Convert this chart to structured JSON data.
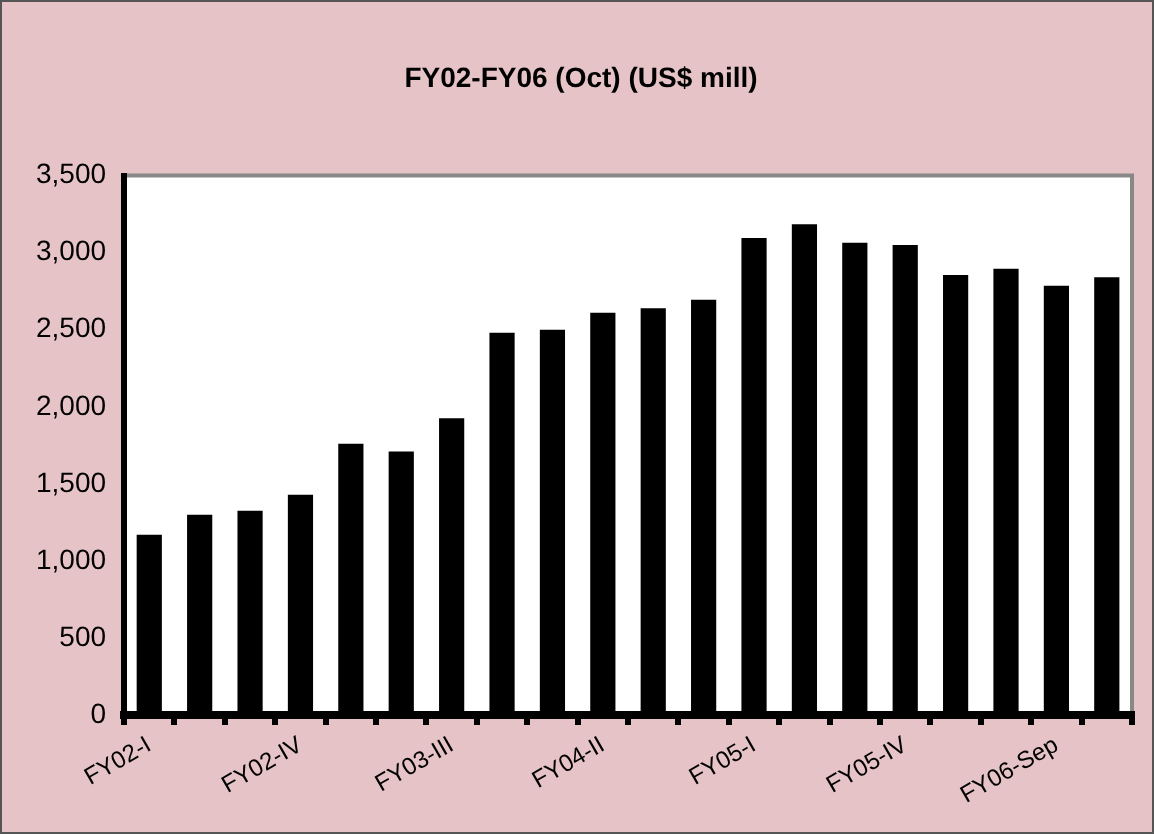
{
  "chart_data": {
    "type": "bar",
    "title": "FY02-FY06 (Oct) (US$ mill)",
    "categories": [
      "FY02-I",
      null,
      null,
      "FY02-IV",
      null,
      null,
      "FY03-III",
      null,
      null,
      "FY04-II",
      null,
      null,
      "FY05-I",
      null,
      null,
      "FY05-IV",
      null,
      null,
      "FY06-Sep",
      null
    ],
    "values": [
      1170,
      1300,
      1325,
      1430,
      1760,
      1710,
      1925,
      2480,
      2500,
      2610,
      2640,
      2695,
      3095,
      3185,
      3065,
      3050,
      2855,
      2895,
      2785,
      2840
    ],
    "color": "#000000",
    "ylim": [
      0,
      3500
    ],
    "yticks": [
      {
        "value": 0,
        "label": "0"
      },
      {
        "value": 500,
        "label": "500"
      },
      {
        "value": 1000,
        "label": "1,000"
      },
      {
        "value": 1500,
        "label": "1,500"
      },
      {
        "value": 2000,
        "label": "2,000"
      },
      {
        "value": 2500,
        "label": "2,500"
      },
      {
        "value": 3000,
        "label": "3,000"
      },
      {
        "value": 3500,
        "label": "3,500"
      }
    ],
    "grid": false,
    "legend": false
  }
}
